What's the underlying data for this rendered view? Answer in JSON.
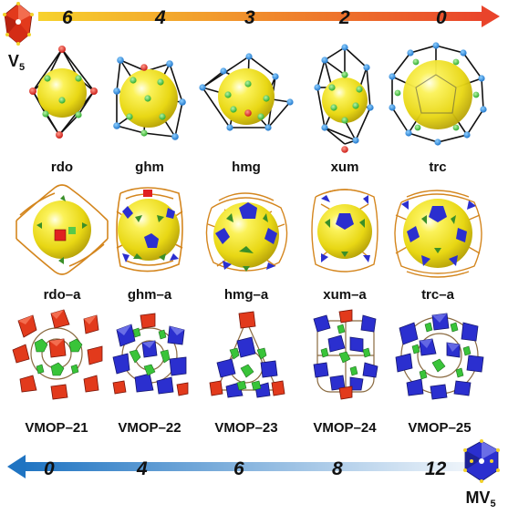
{
  "top_scale": {
    "label": "V",
    "label_sub": "5",
    "numbers": [
      "6",
      "4",
      "3",
      "2",
      "0"
    ],
    "gradient": [
      "#f7d22c",
      "#e9442b"
    ]
  },
  "bottom_scale": {
    "label": "MV",
    "label_sub": "5",
    "numbers": [
      "0",
      "4",
      "6",
      "8",
      "12"
    ],
    "gradient": [
      "#1f74c2",
      "#e4eef8"
    ]
  },
  "row_cages": {
    "labels": [
      "rdo",
      "ghm",
      "hmg",
      "xum",
      "trc"
    ]
  },
  "row_augmented": {
    "labels": [
      "rdo–a",
      "ghm–a",
      "hmg–a",
      "xum–a",
      "trc–a"
    ]
  },
  "row_vmop": {
    "labels": [
      "VMOP–21",
      "VMOP–22",
      "VMOP–23",
      "VMOP–24",
      "VMOP–25"
    ]
  },
  "colors": {
    "sphere": "#f2e21a",
    "vertex_red": "#e02020",
    "vertex_blue": "#2b8fe0",
    "vertex_green": "#3ec43e",
    "frame_orange": "#d4861e",
    "poly_red": "#e23a1c",
    "poly_blue": "#2b2fcf",
    "poly_green": "#39c439"
  },
  "icons": [
    "v5-cluster-icon",
    "mv5-cluster-icon"
  ]
}
